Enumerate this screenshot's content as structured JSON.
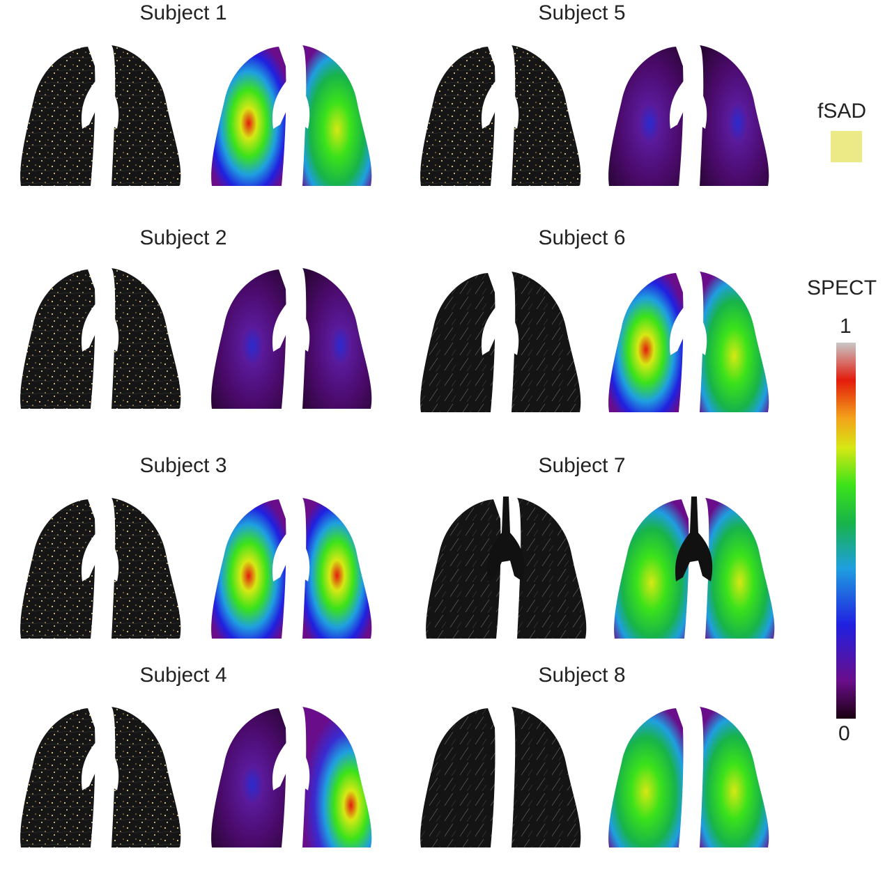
{
  "panels": [
    {
      "title": "Subject 1",
      "spect_level": "high"
    },
    {
      "title": "Subject 2",
      "spect_level": "low"
    },
    {
      "title": "Subject 3",
      "spect_level": "high"
    },
    {
      "title": "Subject 4",
      "spect_level": "patchy"
    },
    {
      "title": "Subject 5",
      "spect_level": "low"
    },
    {
      "title": "Subject 6",
      "spect_level": "high"
    },
    {
      "title": "Subject 7",
      "spect_level": "high"
    },
    {
      "title": "Subject 8",
      "spect_level": "high"
    }
  ],
  "legend": {
    "fsad_label": "fSAD",
    "fsad_color": "#ecea86",
    "spect_label": "SPECT",
    "spect_max": "1",
    "spect_min": "0"
  },
  "colors": {
    "ct_background": "#101010",
    "airway": "#ffffff",
    "spect_stops": [
      "#1a0010",
      "#6a0d8a",
      "#2020e0",
      "#1f9fe0",
      "#18b34a",
      "#3be21a",
      "#d6e814",
      "#f3a11a",
      "#e31b0c",
      "#c8c8c8"
    ]
  }
}
